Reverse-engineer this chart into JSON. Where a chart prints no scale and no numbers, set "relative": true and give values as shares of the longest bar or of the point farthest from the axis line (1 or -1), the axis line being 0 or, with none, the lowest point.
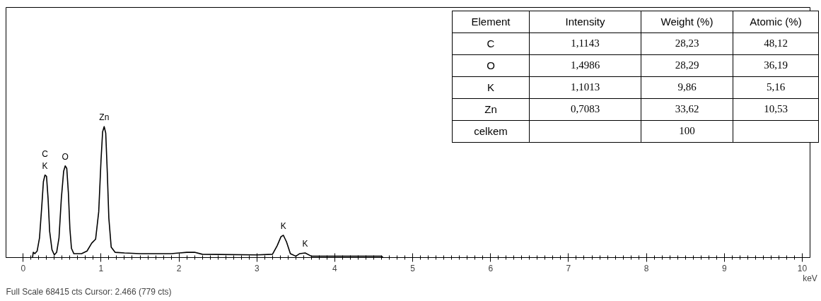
{
  "chart_data": [
    {
      "type": "line",
      "relative": true,
      "xlabel": "keV",
      "xlim": [
        -0.22,
        10.1
      ],
      "xticks": [
        0,
        1,
        2,
        3,
        4,
        5,
        6,
        7,
        8,
        9,
        10
      ],
      "marker": "none",
      "line_style": "solid",
      "series": [
        {
          "color": "#000000",
          "x": [
            0.12,
            0.13,
            0.15,
            0.18,
            0.21,
            0.24,
            0.26,
            0.28,
            0.3,
            0.32,
            0.34,
            0.37,
            0.4,
            0.43,
            0.46,
            0.49,
            0.52,
            0.54,
            0.56,
            0.58,
            0.6,
            0.62,
            0.65,
            0.75,
            0.82,
            0.88,
            0.93,
            0.97,
            1.0,
            1.02,
            1.04,
            1.06,
            1.08,
            1.1,
            1.13,
            1.18,
            1.3,
            1.5,
            1.9,
            2.1,
            2.2,
            2.3,
            3.0,
            3.2,
            3.26,
            3.31,
            3.34,
            3.38,
            3.43,
            3.5,
            3.55,
            3.62,
            3.7,
            4.0,
            4.6,
            4.62
          ],
          "values": [
            0.0,
            0.04,
            0.03,
            0.05,
            0.15,
            0.4,
            0.58,
            0.63,
            0.62,
            0.45,
            0.2,
            0.06,
            0.02,
            0.04,
            0.15,
            0.45,
            0.66,
            0.7,
            0.68,
            0.5,
            0.22,
            0.07,
            0.03,
            0.03,
            0.05,
            0.11,
            0.14,
            0.35,
            0.75,
            0.96,
            1.0,
            0.95,
            0.65,
            0.3,
            0.08,
            0.04,
            0.035,
            0.03,
            0.03,
            0.04,
            0.04,
            0.025,
            0.02,
            0.025,
            0.09,
            0.16,
            0.17,
            0.12,
            0.03,
            0.01,
            0.03,
            0.035,
            0.01,
            0.01,
            0.01,
            0.0
          ]
        }
      ],
      "annotations": [
        {
          "text": "K",
          "x": 0.28,
          "y": 0.63
        },
        {
          "text": "C",
          "x": 0.28,
          "y": 0.63
        },
        {
          "text": "O",
          "x": 0.54,
          "y": 0.7
        },
        {
          "text": "Zn",
          "x": 1.04,
          "y": 1.0
        },
        {
          "text": "K",
          "x": 3.34,
          "y": 0.17
        },
        {
          "text": "K",
          "x": 3.62,
          "y": 0.035
        },
        "Full Scale 68415 cts Cursor: 2.466  (779 cts)"
      ]
    },
    {
      "type": "other",
      "categories": [
        "Element",
        "Intensity",
        "Weight (%)",
        "Atomic (%)"
      ],
      "y_categories": [
        "C",
        "O",
        "K",
        "Zn",
        "celkem"
      ],
      "cell_labels": [
        [
          "1,1143",
          "28,23",
          "48,12"
        ],
        [
          "1,4986",
          "28,29",
          "36,19"
        ],
        [
          "1,1013",
          "9,86",
          "5,16"
        ],
        [
          "0,7083",
          "33,62",
          "10,53"
        ],
        [
          null,
          "100",
          null
        ]
      ]
    }
  ]
}
